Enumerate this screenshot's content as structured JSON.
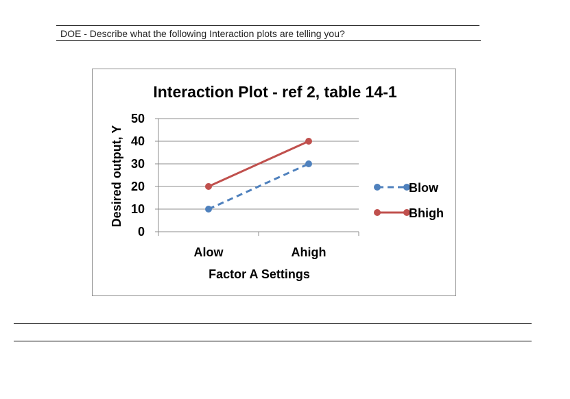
{
  "question": {
    "text": "DOE - Describe what the following Interaction plots are telling you?"
  },
  "chart_data": {
    "type": "line",
    "title": "Interaction Plot - ref 2, table 14-1",
    "xlabel": "Factor A Settings",
    "ylabel": "Desired output, Y",
    "categories": [
      "Alow",
      "Ahigh"
    ],
    "ylim": [
      0,
      50
    ],
    "yticks": [
      0,
      10,
      20,
      30,
      40,
      50
    ],
    "grid": true,
    "legend_position": "right",
    "series": [
      {
        "name": "Blow",
        "values": [
          10,
          30
        ],
        "color": "#4f81bd",
        "dashed": true
      },
      {
        "name": "Bhigh",
        "values": [
          20,
          40
        ],
        "color": "#c0504d",
        "dashed": false
      }
    ]
  }
}
